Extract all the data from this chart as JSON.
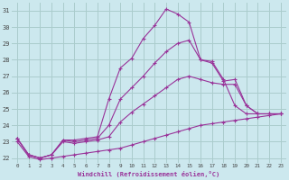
{
  "bg_color": "#cce8ee",
  "grid_color": "#aacccc",
  "line_color": "#993399",
  "xlabel": "Windchill (Refroidissement éolien,°C)",
  "xlabel_color": "#993399",
  "ylim": [
    21.7,
    31.5
  ],
  "xlim": [
    -0.5,
    23.5
  ],
  "yticks": [
    22,
    23,
    24,
    25,
    26,
    27,
    28,
    29,
    30,
    31
  ],
  "xticks": [
    0,
    1,
    2,
    3,
    4,
    5,
    6,
    7,
    8,
    9,
    10,
    11,
    12,
    13,
    14,
    15,
    16,
    17,
    18,
    19,
    20,
    21,
    22,
    23
  ],
  "lines": [
    {
      "x": [
        0,
        1,
        2,
        3,
        4,
        5,
        6,
        7,
        8,
        9,
        10,
        11,
        12,
        13,
        14,
        15,
        16,
        17,
        18,
        19,
        20,
        21,
        22,
        23
      ],
      "y": [
        23.2,
        22.2,
        22.0,
        22.2,
        23.1,
        23.1,
        23.2,
        23.3,
        25.6,
        27.5,
        28.1,
        29.3,
        30.1,
        31.1,
        30.8,
        30.3,
        28.0,
        27.9,
        26.8,
        25.2,
        24.7,
        24.7,
        24.7,
        24.7
      ]
    },
    {
      "x": [
        0,
        1,
        2,
        3,
        4,
        5,
        6,
        7,
        8,
        9,
        10,
        11,
        12,
        13,
        14,
        15,
        16,
        17,
        18,
        19,
        20,
        21,
        22,
        23
      ],
      "y": [
        23.2,
        22.2,
        22.0,
        22.2,
        23.1,
        23.0,
        23.1,
        23.2,
        24.0,
        25.6,
        26.3,
        27.0,
        27.8,
        28.5,
        29.0,
        29.2,
        28.0,
        27.8,
        26.7,
        26.8,
        25.2,
        24.7,
        24.7,
        24.7
      ]
    },
    {
      "x": [
        0,
        1,
        2,
        3,
        4,
        5,
        6,
        7,
        8,
        9,
        10,
        11,
        12,
        13,
        14,
        15,
        16,
        17,
        18,
        19,
        20,
        21,
        22,
        23
      ],
      "y": [
        23.2,
        22.2,
        22.0,
        22.2,
        23.0,
        22.9,
        23.0,
        23.1,
        23.3,
        24.2,
        24.8,
        25.3,
        25.8,
        26.3,
        26.8,
        27.0,
        26.8,
        26.6,
        26.5,
        26.5,
        25.2,
        24.7,
        24.7,
        24.7
      ]
    },
    {
      "x": [
        0,
        1,
        2,
        3,
        4,
        5,
        6,
        7,
        8,
        9,
        10,
        11,
        12,
        13,
        14,
        15,
        16,
        17,
        18,
        19,
        20,
        21,
        22,
        23
      ],
      "y": [
        23.0,
        22.1,
        21.9,
        22.0,
        22.1,
        22.2,
        22.3,
        22.4,
        22.5,
        22.6,
        22.8,
        23.0,
        23.2,
        23.4,
        23.6,
        23.8,
        24.0,
        24.1,
        24.2,
        24.3,
        24.4,
        24.5,
        24.6,
        24.7
      ]
    }
  ]
}
